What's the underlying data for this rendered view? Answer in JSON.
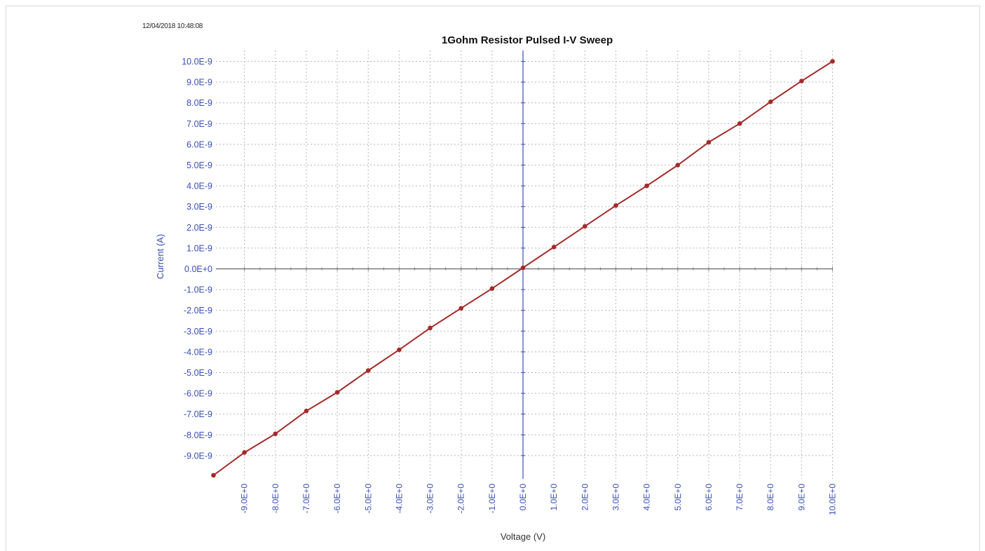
{
  "timestamp": "12/04/2018 10:48:08",
  "chart_data": {
    "type": "line",
    "title": "1Gohm Resistor Pulsed I-V Sweep",
    "xlabel": "Voltage (V)",
    "ylabel": "Current (A)",
    "xlim": [
      -10,
      10
    ],
    "ylim": [
      -10,
      10
    ],
    "y_unit_scale": "E-9",
    "grid": true,
    "x_tick_labels": [
      "-9.0E+0",
      "-8.0E+0",
      "-7.0E+0",
      "-6.0E+0",
      "-5.0E+0",
      "-4.0E+0",
      "-3.0E+0",
      "-2.0E+0",
      "-1.0E+0",
      "0.0E+0",
      "1.0E+0",
      "2.0E+0",
      "3.0E+0",
      "4.0E+0",
      "5.0E+0",
      "6.0E+0",
      "7.0E+0",
      "8.0E+0",
      "9.0E+0",
      "10.0E+0"
    ],
    "y_tick_labels": [
      "10.0E-9",
      "9.0E-9",
      "8.0E-9",
      "7.0E-9",
      "6.0E-9",
      "5.0E-9",
      "4.0E-9",
      "3.0E-9",
      "2.0E-9",
      "1.0E-9",
      "0.0E+0",
      "-1.0E-9",
      "-2.0E-9",
      "-3.0E-9",
      "-4.0E-9",
      "-5.0E-9",
      "-6.0E-9",
      "-7.0E-9",
      "-8.0E-9",
      "-9.0E-9"
    ],
    "series": [
      {
        "x": [
          -10,
          -9,
          -8,
          -7,
          -6,
          -5,
          -4,
          -3,
          -2,
          -1,
          0,
          1,
          2,
          3,
          4,
          5,
          6,
          7,
          8,
          9,
          10
        ],
        "y": [
          -9.95,
          -8.85,
          -7.95,
          -6.85,
          -5.95,
          -4.9,
          -3.9,
          -2.85,
          -1.9,
          -0.95,
          0.05,
          1.05,
          2.05,
          3.05,
          4.0,
          5.0,
          6.1,
          7.0,
          8.05,
          9.05,
          10.0
        ]
      }
    ],
    "colors": {
      "series": "#a52a2a",
      "axis_labels": "#3a4db5",
      "zero_x_axis": "#7a7a7a",
      "zero_y_axis": "#3a4db5",
      "grid": "#b8b8b8",
      "title": "#111111"
    }
  }
}
